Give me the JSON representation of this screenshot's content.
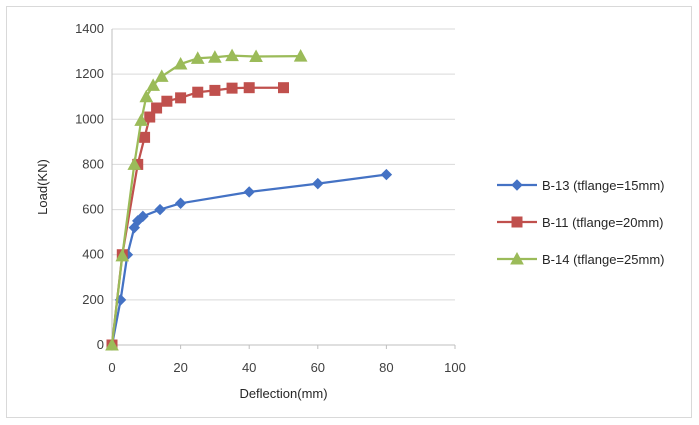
{
  "chart_data": {
    "type": "line",
    "title": "",
    "xlabel": "Deflection(mm)",
    "ylabel": "Load(KN)",
    "xlim": [
      0,
      100
    ],
    "ylim": [
      0,
      1400
    ],
    "xticks": [
      "0",
      "20",
      "40",
      "60",
      "80",
      "100"
    ],
    "yticks": [
      "0",
      "200",
      "400",
      "600",
      "800",
      "1000",
      "1200",
      "1400"
    ],
    "grid": "horizontal",
    "legend": "right",
    "series": [
      {
        "name": "B-13 (tflange=15mm)",
        "color": "#4472c4",
        "marker": "diamond",
        "points": [
          [
            0,
            0
          ],
          [
            2.5,
            200
          ],
          [
            4.5,
            400
          ],
          [
            6.5,
            520
          ],
          [
            7.5,
            550
          ],
          [
            9,
            570
          ],
          [
            14,
            600
          ],
          [
            20,
            628
          ],
          [
            40,
            678
          ],
          [
            60,
            715
          ],
          [
            80,
            755
          ]
        ]
      },
      {
        "name": "B-11 (tflange=20mm)",
        "color": "#c0504d",
        "marker": "square",
        "points": [
          [
            0,
            0
          ],
          [
            3,
            400
          ],
          [
            7.5,
            800
          ],
          [
            9.5,
            920
          ],
          [
            11,
            1010
          ],
          [
            13,
            1050
          ],
          [
            16,
            1080
          ],
          [
            20,
            1095
          ],
          [
            25,
            1120
          ],
          [
            30,
            1128
          ],
          [
            35,
            1138
          ],
          [
            40,
            1140
          ],
          [
            50,
            1140
          ]
        ]
      },
      {
        "name": "B-14 (tflange=25mm)",
        "color": "#9bbb59",
        "marker": "triangle",
        "points": [
          [
            0,
            0
          ],
          [
            3,
            395
          ],
          [
            6.5,
            800
          ],
          [
            8.5,
            995
          ],
          [
            10,
            1100
          ],
          [
            12,
            1150
          ],
          [
            14.5,
            1190
          ],
          [
            20,
            1245
          ],
          [
            25,
            1270
          ],
          [
            30,
            1275
          ],
          [
            35,
            1282
          ],
          [
            42,
            1278
          ],
          [
            55,
            1280
          ]
        ]
      }
    ]
  }
}
